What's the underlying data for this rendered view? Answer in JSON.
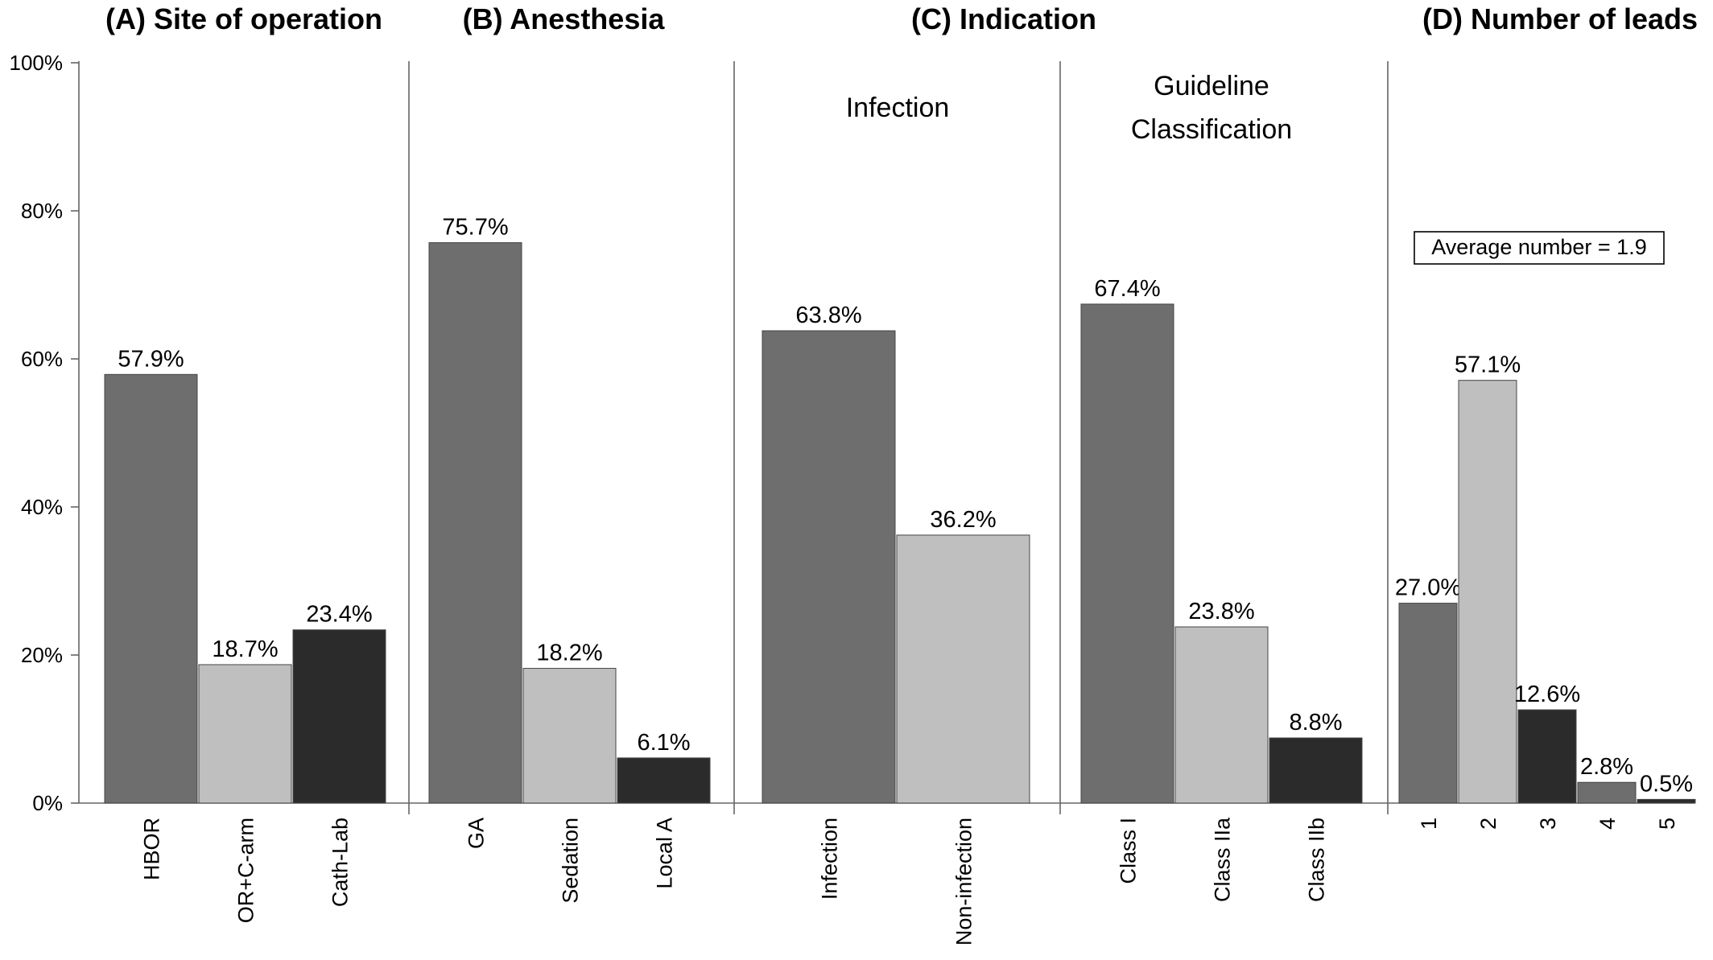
{
  "colors": {
    "dark_gray": "#6e6e6e",
    "light_gray": "#bfbfbf",
    "near_black": "#2b2b2b",
    "axis": "#666666"
  },
  "chart_data": [
    {
      "type": "bar",
      "title": "(A) Site of operation",
      "ylim": [
        0,
        100
      ],
      "y_ticks": [
        "0%",
        "20%",
        "40%",
        "60%",
        "80%",
        "100%"
      ],
      "categories": [
        "HBOR",
        "OR+C-arm",
        "Cath-Lab"
      ],
      "values": [
        57.9,
        18.7,
        23.4
      ],
      "value_labels": [
        "57.9%",
        "18.7%",
        "23.4%"
      ],
      "bar_colors": [
        "dark_gray",
        "light_gray",
        "near_black"
      ]
    },
    {
      "type": "bar",
      "title": "(B) Anesthesia",
      "ylim": [
        0,
        100
      ],
      "categories": [
        "GA",
        "Sedation",
        "Local A"
      ],
      "values": [
        75.7,
        18.2,
        6.1
      ],
      "value_labels": [
        "75.7%",
        "18.2%",
        "6.1%"
      ],
      "bar_colors": [
        "dark_gray",
        "light_gray",
        "near_black"
      ]
    },
    {
      "type": "bar",
      "title": "(C) Indication",
      "subtitle": "Infection",
      "ylim": [
        0,
        100
      ],
      "categories": [
        "Infection",
        "Non-infection"
      ],
      "values": [
        63.8,
        36.2
      ],
      "value_labels": [
        "63.8%",
        "36.2%"
      ],
      "bar_colors": [
        "dark_gray",
        "light_gray"
      ]
    },
    {
      "type": "bar",
      "subtitle_lines": [
        "Guideline",
        "Classification"
      ],
      "ylim": [
        0,
        100
      ],
      "categories": [
        "Class I",
        "Class IIa",
        "Class IIb"
      ],
      "values": [
        67.4,
        23.8,
        8.8
      ],
      "value_labels": [
        "67.4%",
        "23.8%",
        "8.8%"
      ],
      "bar_colors": [
        "dark_gray",
        "light_gray",
        "near_black"
      ]
    },
    {
      "type": "bar",
      "title": "(D) Number of leads",
      "annotation": "Average number = 1.9",
      "ylim": [
        0,
        100
      ],
      "categories": [
        "1",
        "2",
        "3",
        "4",
        "5"
      ],
      "values": [
        27.0,
        57.1,
        12.6,
        2.8,
        0.5
      ],
      "value_labels": [
        "27.0%",
        "57.1%",
        "12.6%",
        "2.8%",
        "0.5%"
      ],
      "bar_colors": [
        "dark_gray",
        "light_gray",
        "near_black",
        "dark_gray",
        "near_black"
      ]
    }
  ]
}
